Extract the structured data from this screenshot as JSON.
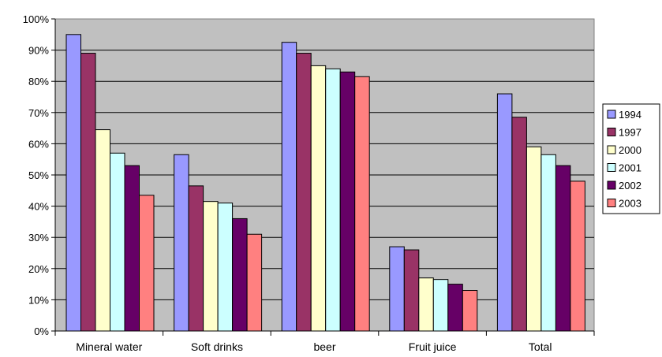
{
  "chart_data": {
    "type": "bar",
    "title": "",
    "xlabel": "",
    "ylabel": "",
    "ylim": [
      0,
      100
    ],
    "y_ticks": [
      "0%",
      "10%",
      "20%",
      "30%",
      "40%",
      "50%",
      "60%",
      "70%",
      "80%",
      "90%",
      "100%"
    ],
    "categories": [
      "Mineral water",
      "Soft drinks",
      "beer",
      "Fruit juice",
      "Total"
    ],
    "series": [
      {
        "name": "1994",
        "color": "#9999ff",
        "values": [
          95,
          56.5,
          92.5,
          27,
          76
        ]
      },
      {
        "name": "1997",
        "color": "#993366",
        "values": [
          89,
          46.5,
          89,
          26,
          68.5
        ]
      },
      {
        "name": "2000",
        "color": "#ffffcc",
        "values": [
          64.5,
          41.5,
          85,
          17,
          59
        ]
      },
      {
        "name": "2001",
        "color": "#ccffff",
        "values": [
          57,
          41,
          84,
          16.5,
          56.5
        ]
      },
      {
        "name": "2002",
        "color": "#660066",
        "values": [
          53,
          36,
          83,
          15,
          53
        ]
      },
      {
        "name": "2003",
        "color": "#ff8080",
        "values": [
          43.5,
          31,
          81.5,
          13,
          48
        ]
      }
    ],
    "grid": true,
    "plot_background": "#c0c0c0",
    "legend_position": "right"
  }
}
